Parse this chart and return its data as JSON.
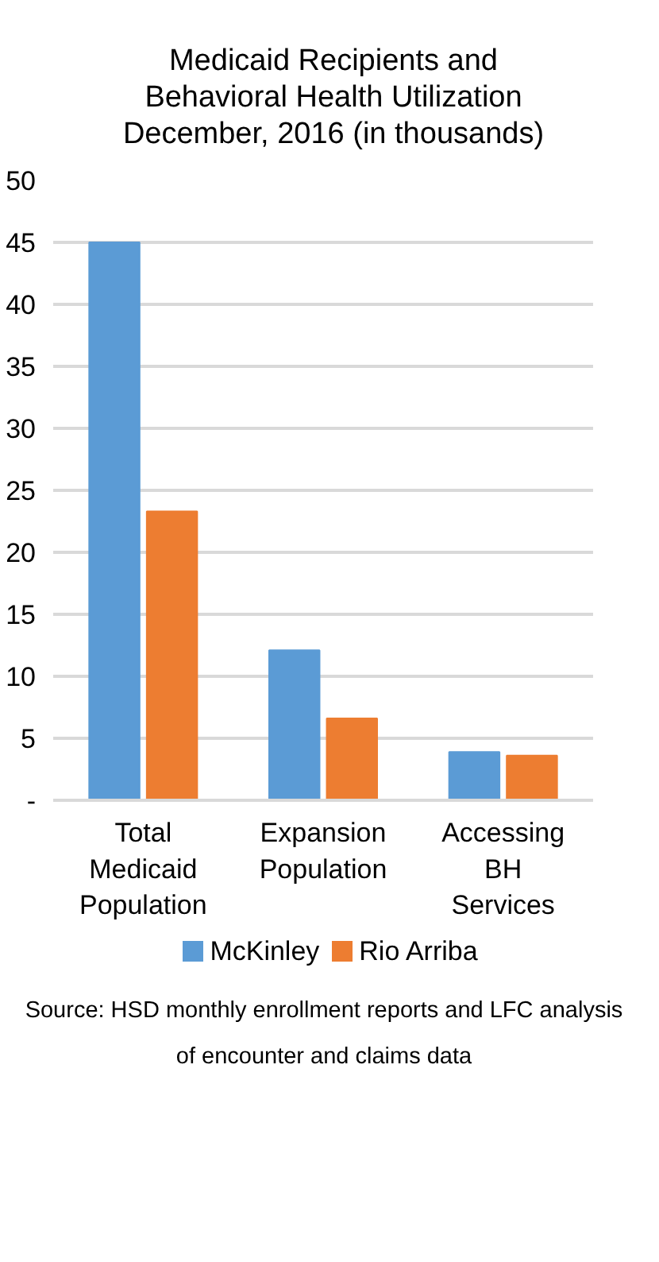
{
  "chart_data": {
    "type": "bar",
    "title": "Medicaid Recipients and Behavioral Health Utilization December, 2016 (in thousands)",
    "categories": [
      "Total Medicaid Population",
      "Expansion Population",
      "Accessing BH Services"
    ],
    "series": [
      {
        "name": "McKinley",
        "color": "#5b9bd5",
        "values": [
          45.0,
          12.1,
          3.9
        ]
      },
      {
        "name": "Rio Arriba",
        "color": "#ed7d31",
        "values": [
          23.3,
          6.6,
          3.6
        ]
      }
    ],
    "ylim": [
      0,
      50
    ],
    "yticks": [
      {
        "value": 0,
        "label": "-"
      },
      5,
      10,
      15,
      20,
      25,
      30,
      35,
      40,
      45,
      50
    ],
    "grid": "y",
    "legend": "bottom",
    "annotations": [
      "Source:  HSD monthly enrollment reports and LFC analysis of encounter and claims data"
    ]
  }
}
